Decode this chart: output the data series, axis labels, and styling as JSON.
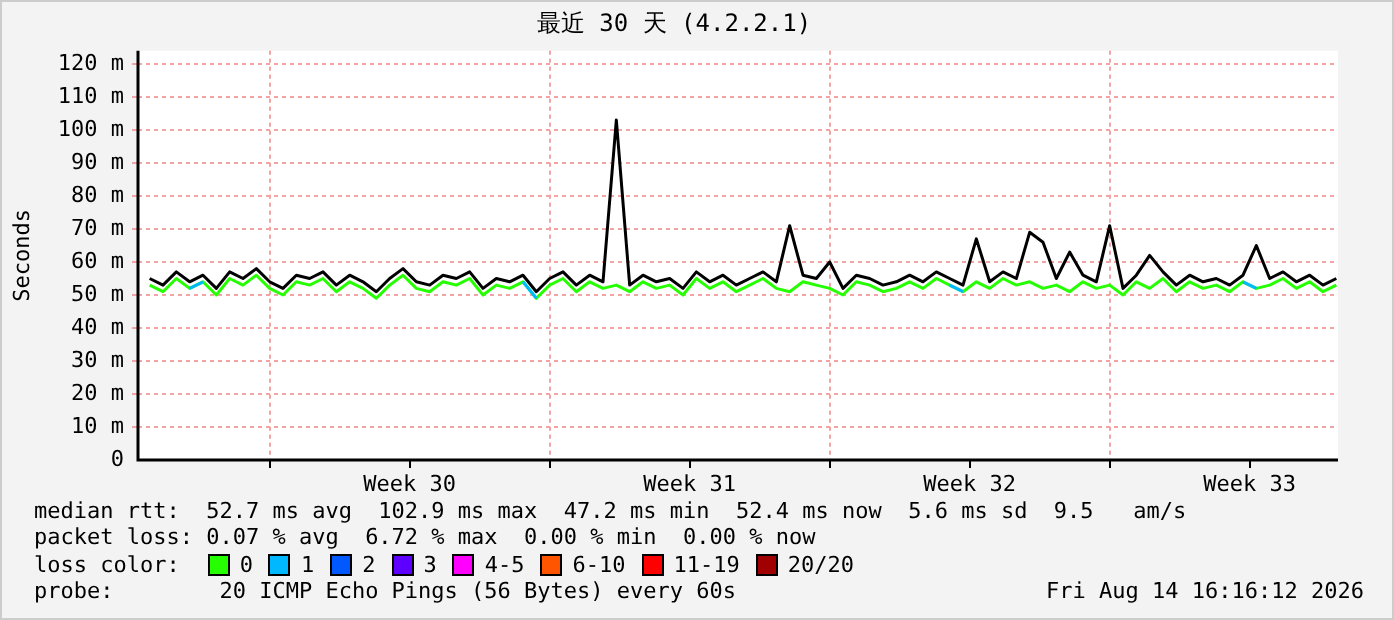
{
  "chart_data": {
    "type": "line",
    "title": "最近 30 天 (4.2.2.1)",
    "ylabel": "Seconds",
    "legend_title": "loss color:",
    "legend": "bottom",
    "grid": true,
    "marker": "none",
    "line_style": "solid",
    "xlim": [
      "2026-07-16T17:00",
      "2026-08-15T17:00"
    ],
    "xticks": [
      {
        "value": "2026-07-20T00:00",
        "label": null
      },
      {
        "value": "2026-07-23T12:00",
        "label": "Week 30"
      },
      {
        "value": "2026-07-27T00:00",
        "label": null
      },
      {
        "value": "2026-07-30T12:00",
        "label": "Week 31"
      },
      {
        "value": "2026-08-03T00:00",
        "label": null
      },
      {
        "value": "2026-08-06T12:00",
        "label": "Week 32"
      },
      {
        "value": "2026-08-10T00:00",
        "label": null
      },
      {
        "value": "2026-08-13T12:00",
        "label": "Week 33"
      }
    ],
    "ylim": [
      0,
      124
    ],
    "yticks": [
      0,
      {
        "value": 10,
        "label": "10 m"
      },
      {
        "value": 20,
        "label": "20 m"
      },
      {
        "value": 30,
        "label": "30 m"
      },
      {
        "value": 40,
        "label": "40 m"
      },
      {
        "value": 50,
        "label": "50 m"
      },
      {
        "value": 60,
        "label": "60 m"
      },
      {
        "value": 70,
        "label": "70 m"
      },
      {
        "value": 80,
        "label": "80 m"
      },
      {
        "value": 90,
        "label": "90 m"
      },
      {
        "value": 100,
        "label": "100 m"
      },
      {
        "value": 110,
        "label": "110 m"
      },
      {
        "value": 120,
        "label": "120 m"
      }
    ],
    "x": [
      "2026-07-17T00:00",
      "2026-07-17T08:00",
      "2026-07-17T16:00",
      "2026-07-18T00:00",
      "2026-07-18T08:00",
      "2026-07-18T16:00",
      "2026-07-19T00:00",
      "2026-07-19T08:00",
      "2026-07-19T16:00",
      "2026-07-20T00:00",
      "2026-07-20T08:00",
      "2026-07-20T16:00",
      "2026-07-21T00:00",
      "2026-07-21T08:00",
      "2026-07-21T16:00",
      "2026-07-22T00:00",
      "2026-07-22T08:00",
      "2026-07-22T16:00",
      "2026-07-23T00:00",
      "2026-07-23T08:00",
      "2026-07-23T16:00",
      "2026-07-24T00:00",
      "2026-07-24T08:00",
      "2026-07-24T16:00",
      "2026-07-25T00:00",
      "2026-07-25T08:00",
      "2026-07-25T16:00",
      "2026-07-26T00:00",
      "2026-07-26T08:00",
      "2026-07-26T16:00",
      "2026-07-27T00:00",
      "2026-07-27T08:00",
      "2026-07-27T16:00",
      "2026-07-28T00:00",
      "2026-07-28T08:00",
      "2026-07-28T16:00",
      "2026-07-29T00:00",
      "2026-07-29T08:00",
      "2026-07-29T16:00",
      "2026-07-30T00:00",
      "2026-07-30T08:00",
      "2026-07-30T16:00",
      "2026-07-31T00:00",
      "2026-07-31T08:00",
      "2026-07-31T16:00",
      "2026-08-01T00:00",
      "2026-08-01T08:00",
      "2026-08-01T16:00",
      "2026-08-02T00:00",
      "2026-08-02T08:00",
      "2026-08-02T16:00",
      "2026-08-03T00:00",
      "2026-08-03T08:00",
      "2026-08-03T16:00",
      "2026-08-04T00:00",
      "2026-08-04T08:00",
      "2026-08-04T16:00",
      "2026-08-05T00:00",
      "2026-08-05T08:00",
      "2026-08-05T16:00",
      "2026-08-06T00:00",
      "2026-08-06T08:00",
      "2026-08-06T16:00",
      "2026-08-07T00:00",
      "2026-08-07T08:00",
      "2026-08-07T16:00",
      "2026-08-08T00:00",
      "2026-08-08T08:00",
      "2026-08-08T16:00",
      "2026-08-09T00:00",
      "2026-08-09T08:00",
      "2026-08-09T16:00",
      "2026-08-10T00:00",
      "2026-08-10T08:00",
      "2026-08-10T16:00",
      "2026-08-11T00:00",
      "2026-08-11T08:00",
      "2026-08-11T16:00",
      "2026-08-12T00:00",
      "2026-08-12T08:00",
      "2026-08-12T16:00",
      "2026-08-13T00:00",
      "2026-08-13T08:00",
      "2026-08-13T16:00",
      "2026-08-14T00:00",
      "2026-08-14T08:00",
      "2026-08-14T16:00",
      "2026-08-15T00:00",
      "2026-08-15T08:00",
      "2026-08-15T16:00"
    ],
    "series": [
      {
        "color": "#000000",
        "values": [
          55,
          53,
          57,
          54,
          56,
          52,
          57,
          55,
          58,
          54,
          52,
          56,
          55,
          57,
          53,
          56,
          54,
          51,
          55,
          58,
          54,
          53,
          56,
          55,
          57,
          52,
          55,
          54,
          56,
          51,
          55,
          57,
          53,
          56,
          54,
          103,
          53,
          56,
          54,
          55,
          52,
          57,
          54,
          56,
          53,
          55,
          57,
          54,
          71,
          56,
          55,
          60,
          52,
          56,
          55,
          53,
          54,
          56,
          54,
          57,
          55,
          53,
          67,
          54,
          57,
          55,
          69,
          66,
          55,
          63,
          56,
          54,
          71,
          52,
          56,
          62,
          57,
          53,
          56,
          54,
          55,
          53,
          56,
          65,
          55,
          57,
          54,
          56,
          53,
          55
        ]
      },
      {
        "name": "0",
        "color": "#26ff00",
        "values": [
          53,
          51,
          55,
          52,
          54,
          50,
          55,
          53,
          56,
          52,
          50,
          54,
          53,
          55,
          51,
          54,
          52,
          49,
          53,
          56,
          52,
          51,
          54,
          53,
          55,
          50,
          53,
          52,
          54,
          49,
          53,
          55,
          51,
          54,
          52,
          53,
          51,
          54,
          52,
          53,
          50,
          55,
          52,
          54,
          51,
          53,
          55,
          52,
          51,
          54,
          53,
          52,
          50,
          54,
          53,
          51,
          52,
          54,
          52,
          55,
          53,
          51,
          54,
          52,
          55,
          53,
          54,
          52,
          53,
          51,
          54,
          52,
          53,
          50,
          54,
          52,
          55,
          51,
          54,
          52,
          53,
          51,
          54,
          52,
          53,
          55,
          52,
          54,
          51,
          53
        ]
      },
      {
        "name": "1",
        "color": "#00b8ff",
        "values": [
          null,
          null,
          null,
          52,
          54,
          null,
          null,
          null,
          null,
          null,
          null,
          null,
          null,
          null,
          null,
          null,
          null,
          null,
          null,
          null,
          null,
          null,
          null,
          null,
          null,
          null,
          null,
          null,
          54,
          49,
          null,
          null,
          null,
          null,
          null,
          null,
          null,
          null,
          null,
          null,
          null,
          null,
          null,
          null,
          null,
          null,
          null,
          null,
          null,
          null,
          null,
          null,
          null,
          null,
          null,
          null,
          null,
          null,
          null,
          null,
          53,
          51,
          null,
          null,
          null,
          null,
          null,
          null,
          null,
          null,
          null,
          null,
          null,
          null,
          null,
          null,
          null,
          null,
          null,
          null,
          null,
          null,
          54,
          52,
          null,
          null,
          null,
          null,
          null,
          null
        ]
      },
      {
        "name": "2",
        "color": "#0059ff",
        "values": [
          null,
          null,
          null,
          null,
          null,
          null,
          null,
          null,
          null,
          null,
          null,
          null,
          null,
          null,
          null,
          null,
          null,
          null,
          null,
          null,
          null,
          null,
          null,
          null,
          null,
          null,
          null,
          null,
          null,
          null,
          null,
          null,
          null,
          null,
          null,
          null,
          null,
          null,
          null,
          null,
          null,
          null,
          null,
          null,
          null,
          null,
          null,
          null,
          null,
          null,
          null,
          null,
          null,
          null,
          null,
          null,
          null,
          null,
          null,
          null,
          null,
          null,
          null,
          null,
          null,
          null,
          null,
          null,
          null,
          null,
          null,
          null,
          null,
          null,
          null,
          null,
          null,
          null,
          null,
          null,
          null,
          null,
          null,
          null,
          null,
          null,
          null,
          null,
          null,
          null
        ]
      },
      {
        "name": "3",
        "color": "#5e00ff",
        "values": [
          null,
          null,
          null,
          null,
          null,
          null,
          null,
          null,
          null,
          null,
          null,
          null,
          null,
          null,
          null,
          null,
          null,
          null,
          null,
          null,
          null,
          null,
          null,
          null,
          null,
          null,
          null,
          null,
          null,
          null,
          null,
          null,
          null,
          null,
          null,
          null,
          null,
          null,
          null,
          null,
          null,
          null,
          null,
          null,
          null,
          null,
          null,
          null,
          null,
          null,
          null,
          null,
          null,
          null,
          null,
          null,
          null,
          null,
          null,
          null,
          null,
          null,
          null,
          null,
          null,
          null,
          null,
          null,
          null,
          null,
          null,
          null,
          null,
          null,
          null,
          null,
          null,
          null,
          null,
          null,
          null,
          null,
          null,
          null,
          null,
          null,
          null,
          null,
          null,
          null
        ]
      },
      {
        "name": "4-5",
        "color": "#ff00ff",
        "values": [
          null,
          null,
          null,
          null,
          null,
          null,
          null,
          null,
          null,
          null,
          null,
          null,
          null,
          null,
          null,
          null,
          null,
          null,
          null,
          null,
          null,
          null,
          null,
          null,
          null,
          null,
          null,
          null,
          null,
          null,
          null,
          null,
          null,
          null,
          null,
          null,
          null,
          null,
          null,
          null,
          null,
          null,
          null,
          null,
          null,
          null,
          null,
          null,
          null,
          null,
          null,
          null,
          null,
          null,
          null,
          null,
          null,
          null,
          null,
          null,
          null,
          null,
          null,
          null,
          null,
          null,
          null,
          null,
          null,
          null,
          null,
          null,
          null,
          null,
          null,
          null,
          null,
          null,
          null,
          null,
          null,
          null,
          null,
          null,
          null,
          null,
          null,
          null,
          null,
          null
        ]
      },
      {
        "name": "6-10",
        "color": "#ff5500",
        "values": [
          null,
          null,
          null,
          null,
          null,
          null,
          null,
          null,
          null,
          null,
          null,
          null,
          null,
          null,
          null,
          null,
          null,
          null,
          null,
          null,
          null,
          null,
          null,
          null,
          null,
          null,
          null,
          null,
          null,
          null,
          null,
          null,
          null,
          null,
          null,
          null,
          null,
          null,
          null,
          null,
          null,
          null,
          null,
          null,
          null,
          null,
          null,
          null,
          null,
          null,
          null,
          null,
          null,
          null,
          null,
          null,
          null,
          null,
          null,
          null,
          null,
          null,
          null,
          null,
          null,
          null,
          null,
          null,
          null,
          null,
          null,
          null,
          null,
          null,
          null,
          null,
          null,
          null,
          null,
          null,
          null,
          null,
          null,
          null,
          null,
          null,
          null,
          null,
          null,
          null
        ]
      },
      {
        "name": "11-19",
        "color": "#ff0000",
        "values": [
          null,
          null,
          null,
          null,
          null,
          null,
          null,
          null,
          null,
          null,
          null,
          null,
          null,
          null,
          null,
          null,
          null,
          null,
          null,
          null,
          null,
          null,
          null,
          null,
          null,
          null,
          null,
          null,
          null,
          null,
          null,
          null,
          null,
          null,
          null,
          null,
          null,
          null,
          null,
          null,
          null,
          null,
          null,
          null,
          null,
          null,
          null,
          null,
          null,
          null,
          null,
          null,
          null,
          null,
          null,
          null,
          null,
          null,
          null,
          null,
          null,
          null,
          null,
          null,
          null,
          null,
          null,
          null,
          null,
          null,
          null,
          null,
          null,
          null,
          null,
          null,
          null,
          null,
          null,
          null,
          null,
          null,
          null,
          null,
          null,
          null,
          null,
          null,
          null,
          null
        ]
      },
      {
        "name": "20/20",
        "color": "#a10000",
        "values": [
          null,
          null,
          null,
          null,
          null,
          null,
          null,
          null,
          null,
          null,
          null,
          null,
          null,
          null,
          null,
          null,
          null,
          null,
          null,
          null,
          null,
          null,
          null,
          null,
          null,
          null,
          null,
          null,
          null,
          null,
          null,
          null,
          null,
          null,
          null,
          null,
          null,
          null,
          null,
          null,
          null,
          null,
          null,
          null,
          null,
          null,
          null,
          null,
          null,
          null,
          null,
          null,
          null,
          null,
          null,
          null,
          null,
          null,
          null,
          null,
          null,
          null,
          null,
          null,
          null,
          null,
          null,
          null,
          null,
          null,
          null,
          null,
          null,
          null,
          null,
          null,
          null,
          null,
          null,
          null,
          null,
          null,
          null,
          null,
          null,
          null,
          null,
          null,
          null,
          null
        ]
      }
    ],
    "annotations": [
      "median rtt:  52.7 ms avg  102.9 ms max  47.2 ms min  52.4 ms now  5.6 ms sd  9.5   am/s",
      "packet loss: 0.07 % avg  6.72 % max  0.00 % min  0.00 % now",
      "probe:        20 ICMP Echo Pings (56 Bytes) every 60s",
      "Fri Aug 14 16:16:12 2026"
    ]
  }
}
